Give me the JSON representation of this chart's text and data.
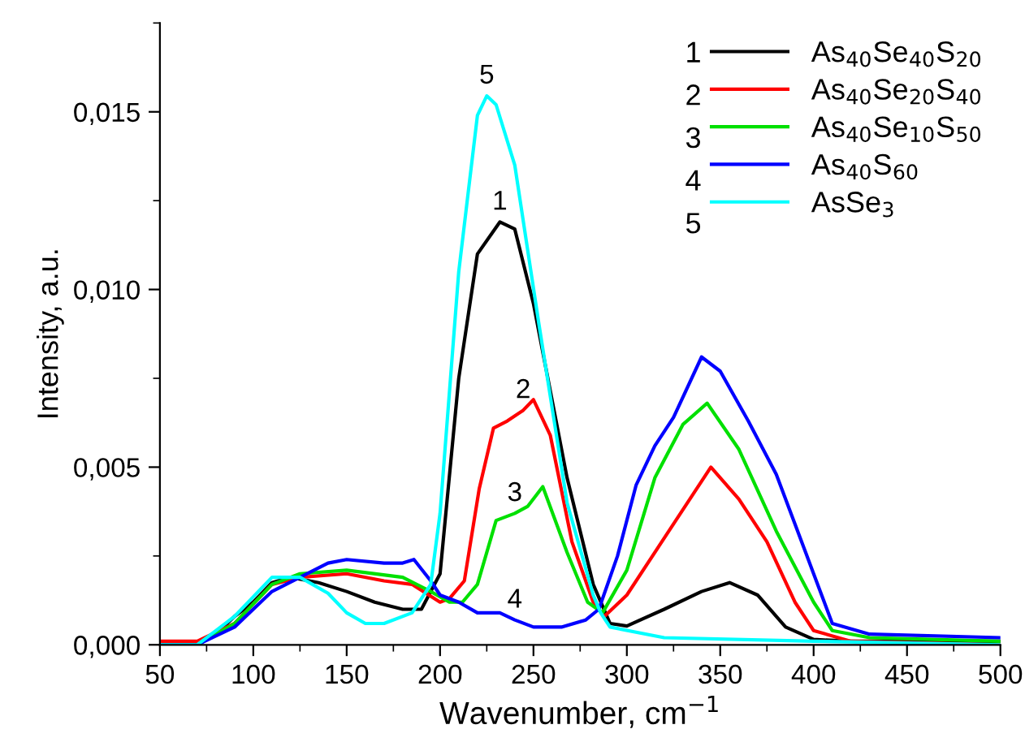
{
  "chart_data": {
    "type": "line",
    "xlabel": "Wavenumber, cm$^{−1}$",
    "ylabel": "Intensity, a.u.",
    "xlim": [
      50,
      500
    ],
    "ylim": [
      0,
      0.0175
    ],
    "xticks": [
      50,
      100,
      150,
      200,
      250,
      300,
      350,
      400,
      450,
      500
    ],
    "yticks": [
      {
        "value": 0,
        "label": "0,000"
      },
      {
        "value": 0.005,
        "label": "0,005"
      },
      {
        "value": 0.01,
        "label": "0,010"
      },
      {
        "value": 0.015,
        "label": "0,015"
      }
    ],
    "grid": false,
    "legend": "top right",
    "marker": "none",
    "line_style": "solid",
    "series": [
      {
        "name": "As$_{40}$Se$_{40}$S$_{20}$",
        "color": "#000000",
        "x": [
          50,
          70,
          80,
          90,
          100,
          110,
          120,
          135,
          150,
          165,
          180,
          190,
          200,
          210,
          220,
          232,
          240,
          250,
          268,
          282,
          291,
          300,
          320,
          340,
          355,
          370,
          385,
          400,
          420,
          500
        ],
        "values": [
          0,
          0,
          0.0003,
          0.0008,
          0.0012,
          0.00175,
          0.0019,
          0.00175,
          0.0015,
          0.0012,
          0.001,
          0.001,
          0.002,
          0.0075,
          0.011,
          0.0119,
          0.0117,
          0.0096,
          0.0047,
          0.0017,
          0.0006,
          0.00053,
          0.001,
          0.0015,
          0.00175,
          0.0014,
          0.0005,
          0.00015,
          0.0001,
          0.0001
        ]
      },
      {
        "name": "As$_{40}$Se$_{20}$S$_{40}$",
        "color": "#ff0000",
        "x": [
          50,
          70,
          90,
          110,
          125,
          150,
          170,
          185,
          200,
          205,
          213,
          221,
          228.6,
          236,
          244.5,
          250,
          259,
          270.6,
          282,
          288,
          300,
          320,
          345,
          360,
          375,
          390,
          400,
          420,
          500
        ],
        "values": [
          0.0001,
          0.0001,
          0.0006,
          0.0017,
          0.0019,
          0.002,
          0.0018,
          0.0017,
          0.0012,
          0.0013,
          0.0018,
          0.0044,
          0.0061,
          0.0063,
          0.0066,
          0.0069,
          0.0059,
          0.0029,
          0.0012,
          0.0008,
          0.0014,
          0.003,
          0.005,
          0.0041,
          0.0029,
          0.0012,
          0.0004,
          0.0001,
          0
        ]
      },
      {
        "name": "As$_{40}$Se$_{10}$S$_{50}$",
        "color": "#00e000",
        "x": [
          50,
          70,
          90,
          110,
          125,
          150,
          180,
          195,
          205,
          212,
          220,
          230,
          240,
          247,
          255,
          268,
          279,
          287,
          300,
          315,
          330,
          343,
          360,
          380,
          400,
          410,
          430,
          500
        ],
        "values": [
          0,
          0,
          0.0006,
          0.0017,
          0.002,
          0.0021,
          0.0019,
          0.0015,
          0.0012,
          0.0012,
          0.0017,
          0.0035,
          0.0037,
          0.0039,
          0.00445,
          0.0026,
          0.0012,
          0.0009,
          0.0021,
          0.0047,
          0.0062,
          0.0068,
          0.0055,
          0.0032,
          0.0012,
          0.0004,
          0.0002,
          0.0001
        ]
      },
      {
        "name": "As$_{40}$S$_{60}$",
        "color": "#0000ff",
        "x": [
          50,
          70,
          90,
          110,
          125,
          140,
          150,
          170,
          180,
          186,
          195,
          200,
          210,
          220,
          232,
          240,
          250,
          265,
          278,
          285,
          295,
          305,
          315,
          325,
          340,
          350,
          365,
          380,
          395,
          400,
          410,
          430,
          500
        ],
        "values": [
          0,
          0,
          0.0005,
          0.0015,
          0.0019,
          0.0023,
          0.0024,
          0.0023,
          0.0023,
          0.0024,
          0.0018,
          0.0014,
          0.0012,
          0.0009,
          0.0009,
          0.0007,
          0.0005,
          0.0005,
          0.0007,
          0.001,
          0.0025,
          0.0045,
          0.0056,
          0.0064,
          0.0081,
          0.0077,
          0.0063,
          0.0048,
          0.0027,
          0.002,
          0.0006,
          0.0003,
          0.0002
        ]
      },
      {
        "name": "AsSe$_{3}$",
        "color": "#00ffff",
        "x": [
          50,
          70,
          90,
          110,
          125,
          140,
          150,
          160,
          170,
          185,
          195,
          200,
          210,
          220,
          225,
          230,
          240,
          253,
          268,
          282,
          286,
          291,
          320,
          400,
          500
        ],
        "values": [
          0,
          0,
          0.0008,
          0.0019,
          0.0019,
          0.00145,
          0.0009,
          0.0006,
          0.0006,
          0.0009,
          0.0017,
          0.0037,
          0.0105,
          0.0149,
          0.01545,
          0.0152,
          0.0135,
          0.009,
          0.004,
          0.0014,
          0.0009,
          0.0005,
          0.0002,
          0.0001,
          0
        ]
      }
    ],
    "annotations": [
      {
        "text": "5",
        "x": 225,
        "y": 0.01545
      },
      {
        "text": "1",
        "x": 232,
        "y": 0.0119
      },
      {
        "text": "2",
        "x": 244.5,
        "y": 0.0066
      },
      {
        "text": "3",
        "x": 240,
        "y": 0.0037
      },
      {
        "text": "4",
        "x": 240,
        "y": 0.0007
      },
      "1",
      "2",
      "3",
      "4",
      "5"
    ]
  }
}
